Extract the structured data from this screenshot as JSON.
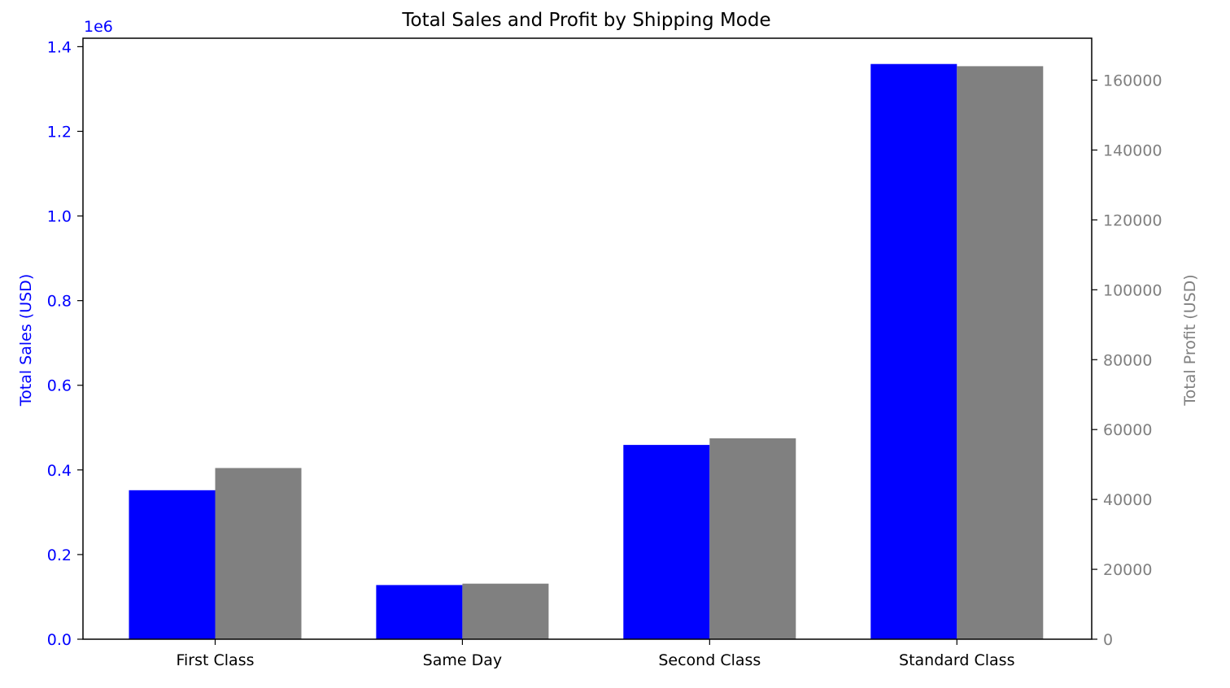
{
  "chart_data": {
    "type": "bar",
    "title": "Total Sales and Profit by Shipping Mode",
    "categories": [
      "First Class",
      "Same Day",
      "Second Class",
      "Standard Class"
    ],
    "y_left": {
      "label": "Total Sales (USD)",
      "scale_note": "1e6",
      "ylim": [
        0,
        1.42
      ],
      "ticks": [
        "0.0",
        "0.2",
        "0.4",
        "0.6",
        "0.8",
        "1.0",
        "1.2",
        "1.4"
      ],
      "tick_values": [
        0,
        0.2,
        0.4,
        0.6,
        0.8,
        1.0,
        1.2,
        1.4
      ],
      "color": "#0000ff"
    },
    "y_right": {
      "label": "Total Profit (USD)",
      "ylim": [
        0,
        172000
      ],
      "ticks": [
        "0",
        "20000",
        "40000",
        "60000",
        "80000",
        "100000",
        "120000",
        "140000",
        "160000"
      ],
      "tick_values": [
        0,
        20000,
        40000,
        60000,
        80000,
        100000,
        120000,
        140000,
        160000
      ],
      "color": "#808080"
    },
    "series": [
      {
        "axis": "left",
        "color": "#0000ff",
        "values": [
          0.352,
          0.128,
          0.459,
          1.359
        ]
      },
      {
        "axis": "right",
        "color": "#808080",
        "values": [
          49000,
          15900,
          57500,
          164000
        ]
      }
    ],
    "legend": "none",
    "grid": false
  }
}
